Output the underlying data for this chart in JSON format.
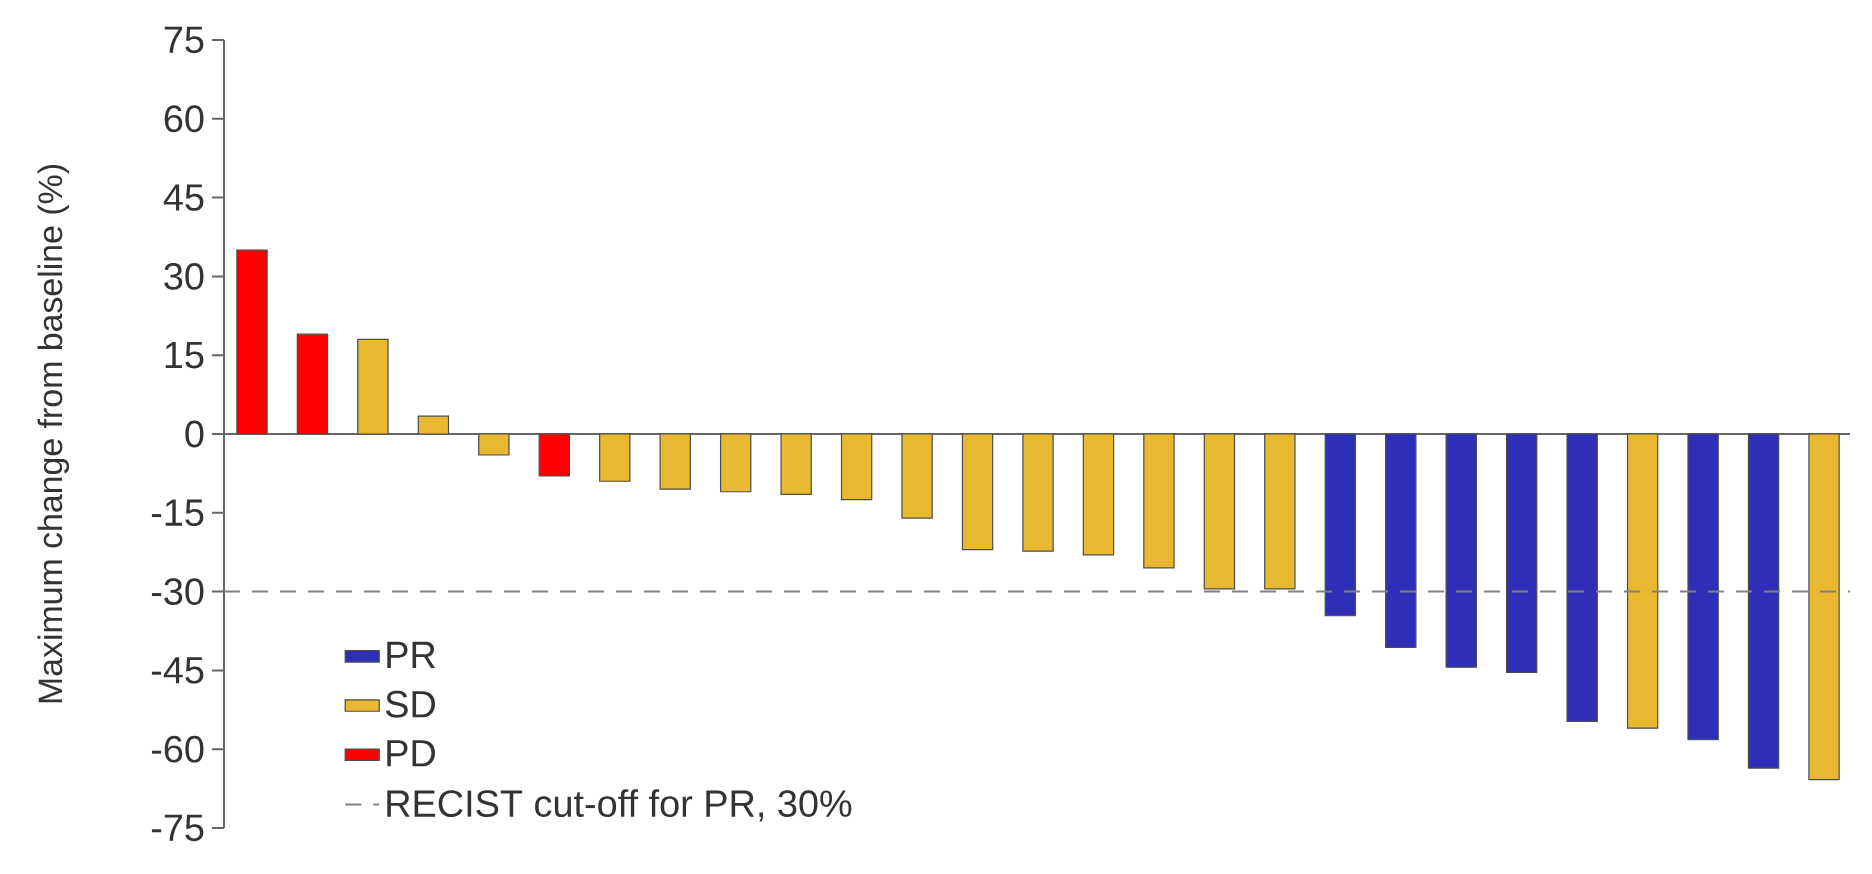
{
  "chart_data": {
    "type": "bar",
    "ylabel": "Maximum change from baseline (%)",
    "categories": [
      null,
      null,
      null,
      null,
      null,
      null,
      null,
      null,
      null,
      null,
      null,
      null,
      null,
      null,
      null,
      null,
      null,
      null,
      null,
      null,
      null,
      null,
      null,
      null,
      null,
      null,
      null
    ],
    "series": [
      {
        "name": "PR",
        "color": "#2e2eb8",
        "values": [
          null,
          null,
          null,
          null,
          null,
          null,
          null,
          null,
          null,
          null,
          null,
          null,
          null,
          null,
          null,
          null,
          null,
          null,
          -34.6,
          -40.6,
          -44.4,
          -45.4,
          -54.7,
          null,
          -58.2,
          -63.6,
          null
        ]
      },
      {
        "name": "SD",
        "color": "#e8b830",
        "values": [
          null,
          null,
          18,
          3.4,
          -4,
          null,
          -9,
          -10.5,
          -11,
          -11.5,
          -12.5,
          -16,
          -22,
          -22.3,
          -23,
          -25.5,
          -29.5,
          -29.5,
          null,
          null,
          null,
          null,
          null,
          -56,
          null,
          null,
          -65.8
        ]
      },
      {
        "name": "PD",
        "color": "#ff0000",
        "values": [
          35,
          19,
          null,
          null,
          null,
          -8,
          null,
          null,
          null,
          null,
          null,
          null,
          null,
          null,
          null,
          null,
          null,
          null,
          null,
          null,
          null,
          null,
          null,
          null,
          null,
          null,
          null
        ]
      }
    ],
    "ylim": [
      -75,
      75
    ],
    "yticks": [
      -75,
      -60,
      -45,
      -30,
      -15,
      0,
      15,
      30,
      45,
      60,
      75
    ],
    "ref_lines": [
      {
        "axis": "y",
        "value": -30,
        "label": "RECIST cut-off for PR, 30%",
        "line_style": "dashed",
        "color": "#808080"
      }
    ],
    "legend": "bottom left",
    "tick_labels": "y"
  }
}
